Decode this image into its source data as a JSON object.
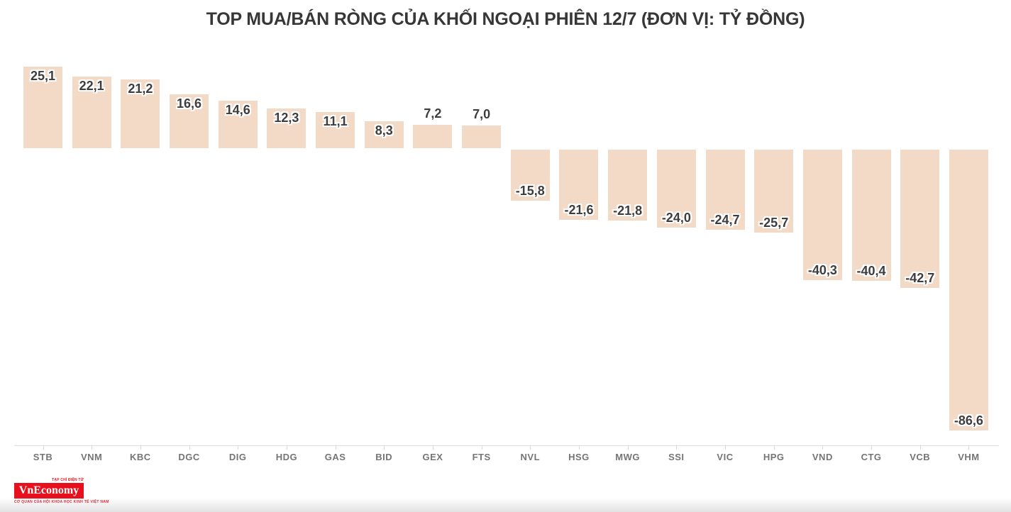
{
  "chart_data": {
    "type": "bar",
    "title": "TOP MUA/BÁN RÒNG CỦA KHỐI NGOẠI PHIÊN 12/7 (ĐƠN VỊ: TỶ ĐỒNG)",
    "unit": "tỷ đồng",
    "categories": [
      "STB",
      "VNM",
      "KBC",
      "DGC",
      "DIG",
      "HDG",
      "GAS",
      "BID",
      "GEX",
      "FTS",
      "NVL",
      "HSG",
      "MWG",
      "SSI",
      "VIC",
      "HPG",
      "VND",
      "CTG",
      "VCB",
      "VHM"
    ],
    "values": [
      25.1,
      22.1,
      21.2,
      16.6,
      14.6,
      12.3,
      11.1,
      8.3,
      7.2,
      7.0,
      -15.8,
      -21.6,
      -21.8,
      -24.0,
      -24.7,
      -25.7,
      -40.3,
      -40.4,
      -42.7,
      -86.6
    ],
    "value_labels": [
      "25,1",
      "22,1",
      "21,2",
      "16,6",
      "14,6",
      "12,3",
      "11,1",
      "8,3",
      "7,2",
      "7,0",
      "-15,8",
      "-21,6",
      "-21,8",
      "-24,0",
      "-24,7",
      "-25,7",
      "-40,3",
      "-40,4",
      "-42,7",
      "-86,6"
    ],
    "ylim": [
      -90,
      30
    ],
    "grid": false,
    "legend": false,
    "bar_color": "#f2dac6",
    "value_label_color": "#3d3d3d",
    "category_label_color": "#757575",
    "axis_color": "#e0e0e0",
    "tick_color": "#d9d9d9",
    "title_color": "#373737"
  },
  "logo": {
    "top_text": "TẠP CHÍ ĐIỆN TỬ",
    "name": "VnEconomy",
    "tagline": "CƠ QUAN CỦA HỘI KHOA HỌC KINH TẾ VIỆT NAM",
    "brand_color": "#e8101c"
  }
}
